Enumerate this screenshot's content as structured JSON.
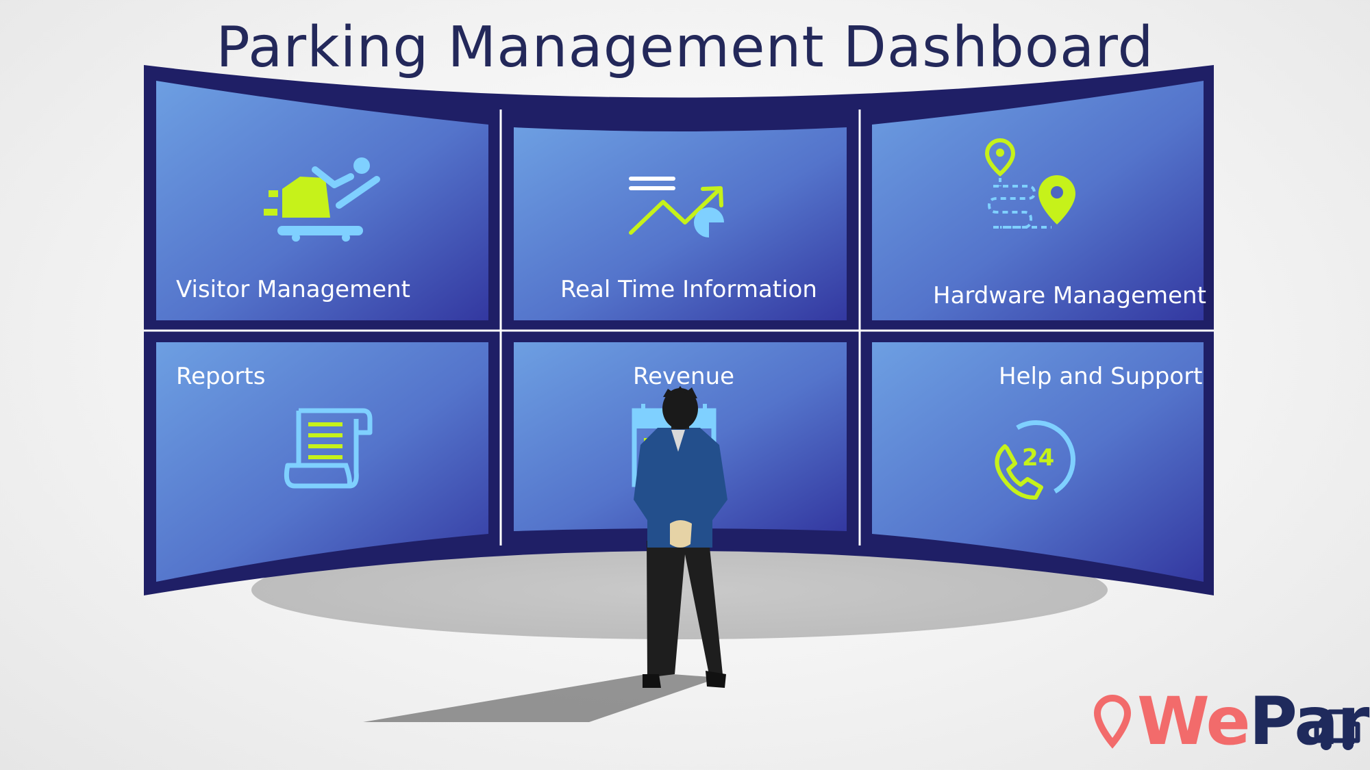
{
  "page": {
    "title": "Parking Management Dashboard"
  },
  "panels": [
    {
      "label": "Visitor Management",
      "icon": "visitor-parking-icon"
    },
    {
      "label": "Real Time Information",
      "icon": "trend-chart-icon"
    },
    {
      "label": "Hardware Management",
      "icon": "map-route-pins-icon"
    },
    {
      "label": "Reports",
      "icon": "report-scroll-icon"
    },
    {
      "label": "Revenue",
      "icon": "calendar-icon"
    },
    {
      "label": "Help and Support",
      "icon": "support-24-phone-icon"
    }
  ],
  "brand": {
    "name_part1": "We",
    "name_part2": "Park",
    "icon": "map-pin-car-icon"
  },
  "colors": {
    "frame": "#1f1f66",
    "screen_light": "#6d9be0",
    "screen_dark": "#3338a0",
    "accent_green": "#c6f21a",
    "accent_blue": "#7fd0ff",
    "title": "#23285a",
    "brand_red": "#f26b6b",
    "brand_navy": "#1f2a5c"
  }
}
